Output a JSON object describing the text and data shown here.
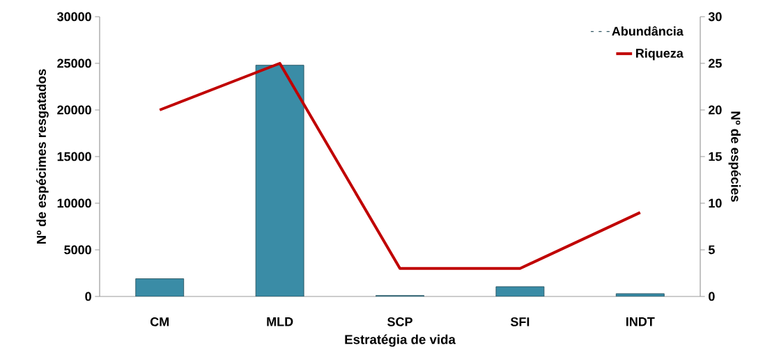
{
  "chart_data": {
    "type": "bar",
    "xlabel": "Estratégia de vida",
    "ylabel": "Nº de espécimes resgatados",
    "y2label": "Nº de espécies",
    "categories": [
      "CM",
      "MLD",
      "SCP",
      "SFI",
      "INDT"
    ],
    "series": [
      {
        "name": "Abundância",
        "color": "#3a8ca6",
        "values": [
          1900,
          24800,
          100,
          1050,
          300
        ]
      },
      {
        "name": "Riqueza",
        "type": "line",
        "axis": "y2",
        "color": "#c00000",
        "values": [
          20,
          25,
          3,
          3,
          9
        ]
      }
    ],
    "ylim": [
      0,
      30000
    ],
    "yticks": [
      0,
      5000,
      10000,
      15000,
      20000,
      25000,
      30000
    ],
    "y2lim": [
      0,
      30
    ],
    "y2ticks": [
      0,
      5,
      10,
      15,
      20,
      25,
      30
    ],
    "legend": "top right",
    "marker": "none",
    "line_style": "solid"
  }
}
